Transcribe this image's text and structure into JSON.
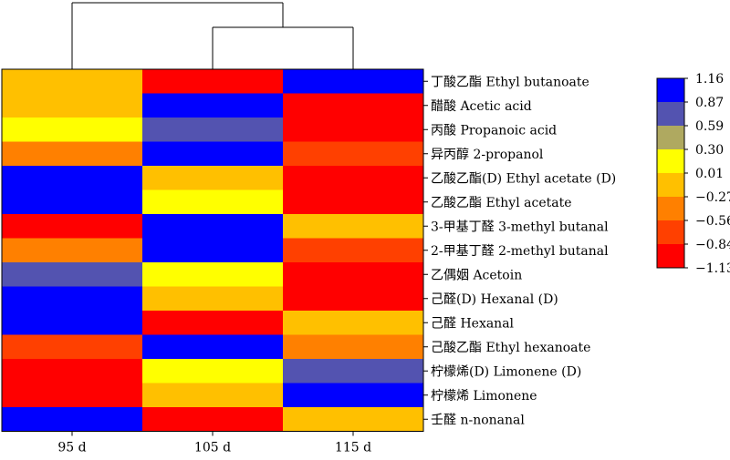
{
  "chart_data": {
    "type": "heatmap",
    "columns": [
      "95 d",
      "105 d",
      "115 d"
    ],
    "rows": [
      "丁酸乙酯 Ethyl butanoate",
      "醋酸 Acetic acid",
      "丙酸 Propanoic acid",
      "异丙醇 2-propanol",
      "乙酸乙酯(D) Ethyl acetate (D)",
      "乙酸乙酯 Ethyl acetate",
      "3-甲基丁醛 3-methyl butanal",
      "2-甲基丁醛 2-methyl butanal",
      "乙偶姻 Acetoin",
      "己醛(D) Hexanal (D)",
      "己醛 Hexanal",
      "己酸乙酯 Ethyl hexanoate",
      "柠檬烯(D) Limonene (D)",
      "柠檬烯 Limonene",
      "壬醛 n-nonanal"
    ],
    "values": [
      [
        -0.27,
        -1.13,
        1.16
      ],
      [
        -0.27,
        1.16,
        -1.13
      ],
      [
        0.3,
        0.87,
        -1.13
      ],
      [
        -0.56,
        1.16,
        -0.84
      ],
      [
        1.16,
        -0.27,
        -1.13
      ],
      [
        1.16,
        0.01,
        -1.13
      ],
      [
        -1.13,
        1.16,
        -0.27
      ],
      [
        -0.56,
        1.16,
        -0.84
      ],
      [
        0.87,
        0.01,
        -1.13
      ],
      [
        1.16,
        -0.27,
        -1.13
      ],
      [
        1.16,
        -1.13,
        -0.27
      ],
      [
        -0.84,
        1.16,
        -0.56
      ],
      [
        -1.13,
        0.01,
        0.87
      ],
      [
        -1.13,
        -0.27,
        1.16
      ],
      [
        1.16,
        -1.13,
        -0.27
      ]
    ],
    "legend": {
      "ticks": [
        "1.16",
        "0.87",
        "0.59",
        "0.30",
        "0.01",
        "−0.27",
        "−0.56",
        "−0.84",
        "−1.13"
      ],
      "tick_values": [
        1.16,
        0.87,
        0.59,
        0.3,
        0.01,
        -0.27,
        -0.56,
        -0.84,
        -1.13
      ],
      "colors": [
        "#0000FF",
        "#5353B0",
        "#AFA960",
        "#FFFF00",
        "#FFC000",
        "#FF8000",
        "#FF4000",
        "#FF0000"
      ]
    },
    "dendrogram": "columns 105 d and 115 d join first, then join 95 d"
  }
}
